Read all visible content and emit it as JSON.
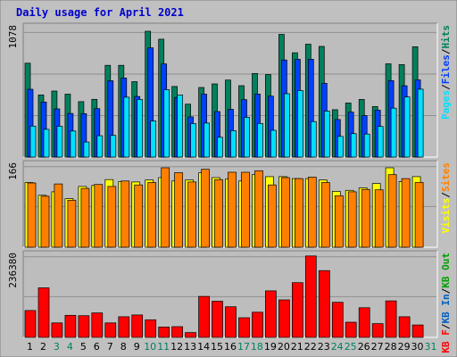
{
  "title": "Daily usage for April 2021",
  "colors": {
    "background": "#ffffff",
    "frame": "#c0c0c0",
    "panel": "#bdbdbd",
    "title": "#0000cc",
    "grid": "#909090",
    "hits": "#00805c",
    "files": "#0040ff",
    "pages": "#00e0ff",
    "visits": "#ffff00",
    "sites": "#ff8000",
    "kbin": "#0060c0",
    "kbout": "#00a000",
    "kbf": "#ff0000",
    "text": "#000000",
    "weekend_day": "#008060"
  },
  "chart_data": [
    {
      "type": "bar",
      "name": "hits-files-pages",
      "y_max_label": "1078",
      "ylim": [
        0,
        1078
      ],
      "legend": [
        "Pages",
        "/",
        "Files",
        "/",
        "Hits"
      ],
      "x": [
        1,
        2,
        3,
        4,
        5,
        6,
        7,
        8,
        9,
        10,
        11,
        12,
        13,
        14,
        15,
        16,
        17,
        18,
        19,
        20,
        21,
        22,
        23,
        24,
        25,
        26,
        27,
        28,
        29,
        30,
        31
      ],
      "series": [
        {
          "name": "Hits",
          "values": [
            804,
            532,
            566,
            539,
            475,
            495,
            786,
            786,
            646,
            1078,
            1010,
            605,
            453,
            596,
            627,
            660,
            612,
            716,
            707,
            1051,
            894,
            967,
            948,
            406,
            463,
            494,
            433,
            799,
            792,
            945,
            0
          ]
        },
        {
          "name": "Files",
          "values": [
            581,
            472,
            413,
            374,
            372,
            415,
            654,
            677,
            519,
            936,
            798,
            511,
            344,
            539,
            390,
            409,
            492,
            540,
            522,
            832,
            838,
            838,
            632,
            322,
            385,
            355,
            402,
            655,
            611,
            661,
            0
          ]
        },
        {
          "name": "Pages",
          "values": [
            265,
            238,
            264,
            223,
            129,
            183,
            186,
            513,
            493,
            310,
            577,
            532,
            287,
            291,
            170,
            226,
            340,
            288,
            229,
            543,
            570,
            304,
            394,
            177,
            201,
            197,
            262,
            419,
            515,
            582,
            0
          ]
        }
      ]
    },
    {
      "type": "bar",
      "name": "visits-sites",
      "y_max_label": "166",
      "ylim": [
        0,
        166
      ],
      "legend": [
        "Visits",
        "/",
        "Sites"
      ],
      "x": [
        1,
        2,
        3,
        4,
        5,
        6,
        7,
        8,
        9,
        10,
        11,
        12,
        13,
        14,
        15,
        16,
        17,
        18,
        19,
        20,
        21,
        22,
        23,
        24,
        25,
        26,
        27,
        28,
        29,
        30,
        31
      ],
      "series": [
        {
          "name": "Visits",
          "values": [
            132,
            106,
            113,
            99,
            124,
            126,
            138,
            134,
            133,
            137,
            142,
            135,
            137,
            152,
            142,
            139,
            135,
            148,
            144,
            144,
            140,
            140,
            137,
            114,
            116,
            121,
            130,
            162,
            134,
            144,
            0
          ]
        },
        {
          "name": "Sites",
          "values": [
            131,
            104,
            129,
            96,
            120,
            128,
            124,
            135,
            127,
            132,
            162,
            152,
            133,
            159,
            138,
            153,
            153,
            156,
            127,
            142,
            140,
            143,
            132,
            105,
            113,
            118,
            117,
            148,
            140,
            132,
            0
          ]
        }
      ]
    },
    {
      "type": "bar",
      "name": "kbytes",
      "y_max_label": "236380",
      "ylim": [
        0,
        236380
      ],
      "legend": [
        "KB F",
        "/",
        "KB In",
        "/",
        "KB Out"
      ],
      "x": [
        1,
        2,
        3,
        4,
        5,
        6,
        7,
        8,
        9,
        10,
        11,
        12,
        13,
        14,
        15,
        16,
        17,
        18,
        19,
        20,
        21,
        22,
        23,
        24,
        25,
        26,
        27,
        28,
        29,
        30,
        31
      ],
      "series": [
        {
          "name": "KB F",
          "values": [
            78000,
            144000,
            42000,
            64000,
            63000,
            71000,
            42000,
            60000,
            65000,
            51000,
            30000,
            31000,
            14000,
            119000,
            105000,
            89000,
            57000,
            73000,
            135000,
            109000,
            159000,
            236380,
            194000,
            102000,
            44000,
            86000,
            40000,
            106000,
            60000,
            36000,
            0
          ]
        }
      ]
    }
  ],
  "day_labels": [
    {
      "text": "1",
      "weekend": false
    },
    {
      "text": "2",
      "weekend": false
    },
    {
      "text": "3",
      "weekend": true
    },
    {
      "text": "4",
      "weekend": true
    },
    {
      "text": "5",
      "weekend": false
    },
    {
      "text": "6",
      "weekend": false
    },
    {
      "text": "7",
      "weekend": false
    },
    {
      "text": "8",
      "weekend": false
    },
    {
      "text": "9",
      "weekend": false
    },
    {
      "text": "10",
      "weekend": true
    },
    {
      "text": "11",
      "weekend": true
    },
    {
      "text": "12",
      "weekend": false
    },
    {
      "text": "13",
      "weekend": false
    },
    {
      "text": "14",
      "weekend": false
    },
    {
      "text": "15",
      "weekend": false
    },
    {
      "text": "16",
      "weekend": false
    },
    {
      "text": "17",
      "weekend": true
    },
    {
      "text": "18",
      "weekend": true
    },
    {
      "text": "19",
      "weekend": false
    },
    {
      "text": "20",
      "weekend": false
    },
    {
      "text": "21",
      "weekend": false
    },
    {
      "text": "22",
      "weekend": false
    },
    {
      "text": "23",
      "weekend": false
    },
    {
      "text": "24",
      "weekend": true
    },
    {
      "text": "25",
      "weekend": true
    },
    {
      "text": "26",
      "weekend": false
    },
    {
      "text": "27",
      "weekend": false
    },
    {
      "text": "28",
      "weekend": false
    },
    {
      "text": "29",
      "weekend": false
    },
    {
      "text": "30",
      "weekend": false
    },
    {
      "text": "31",
      "weekend": true
    }
  ]
}
